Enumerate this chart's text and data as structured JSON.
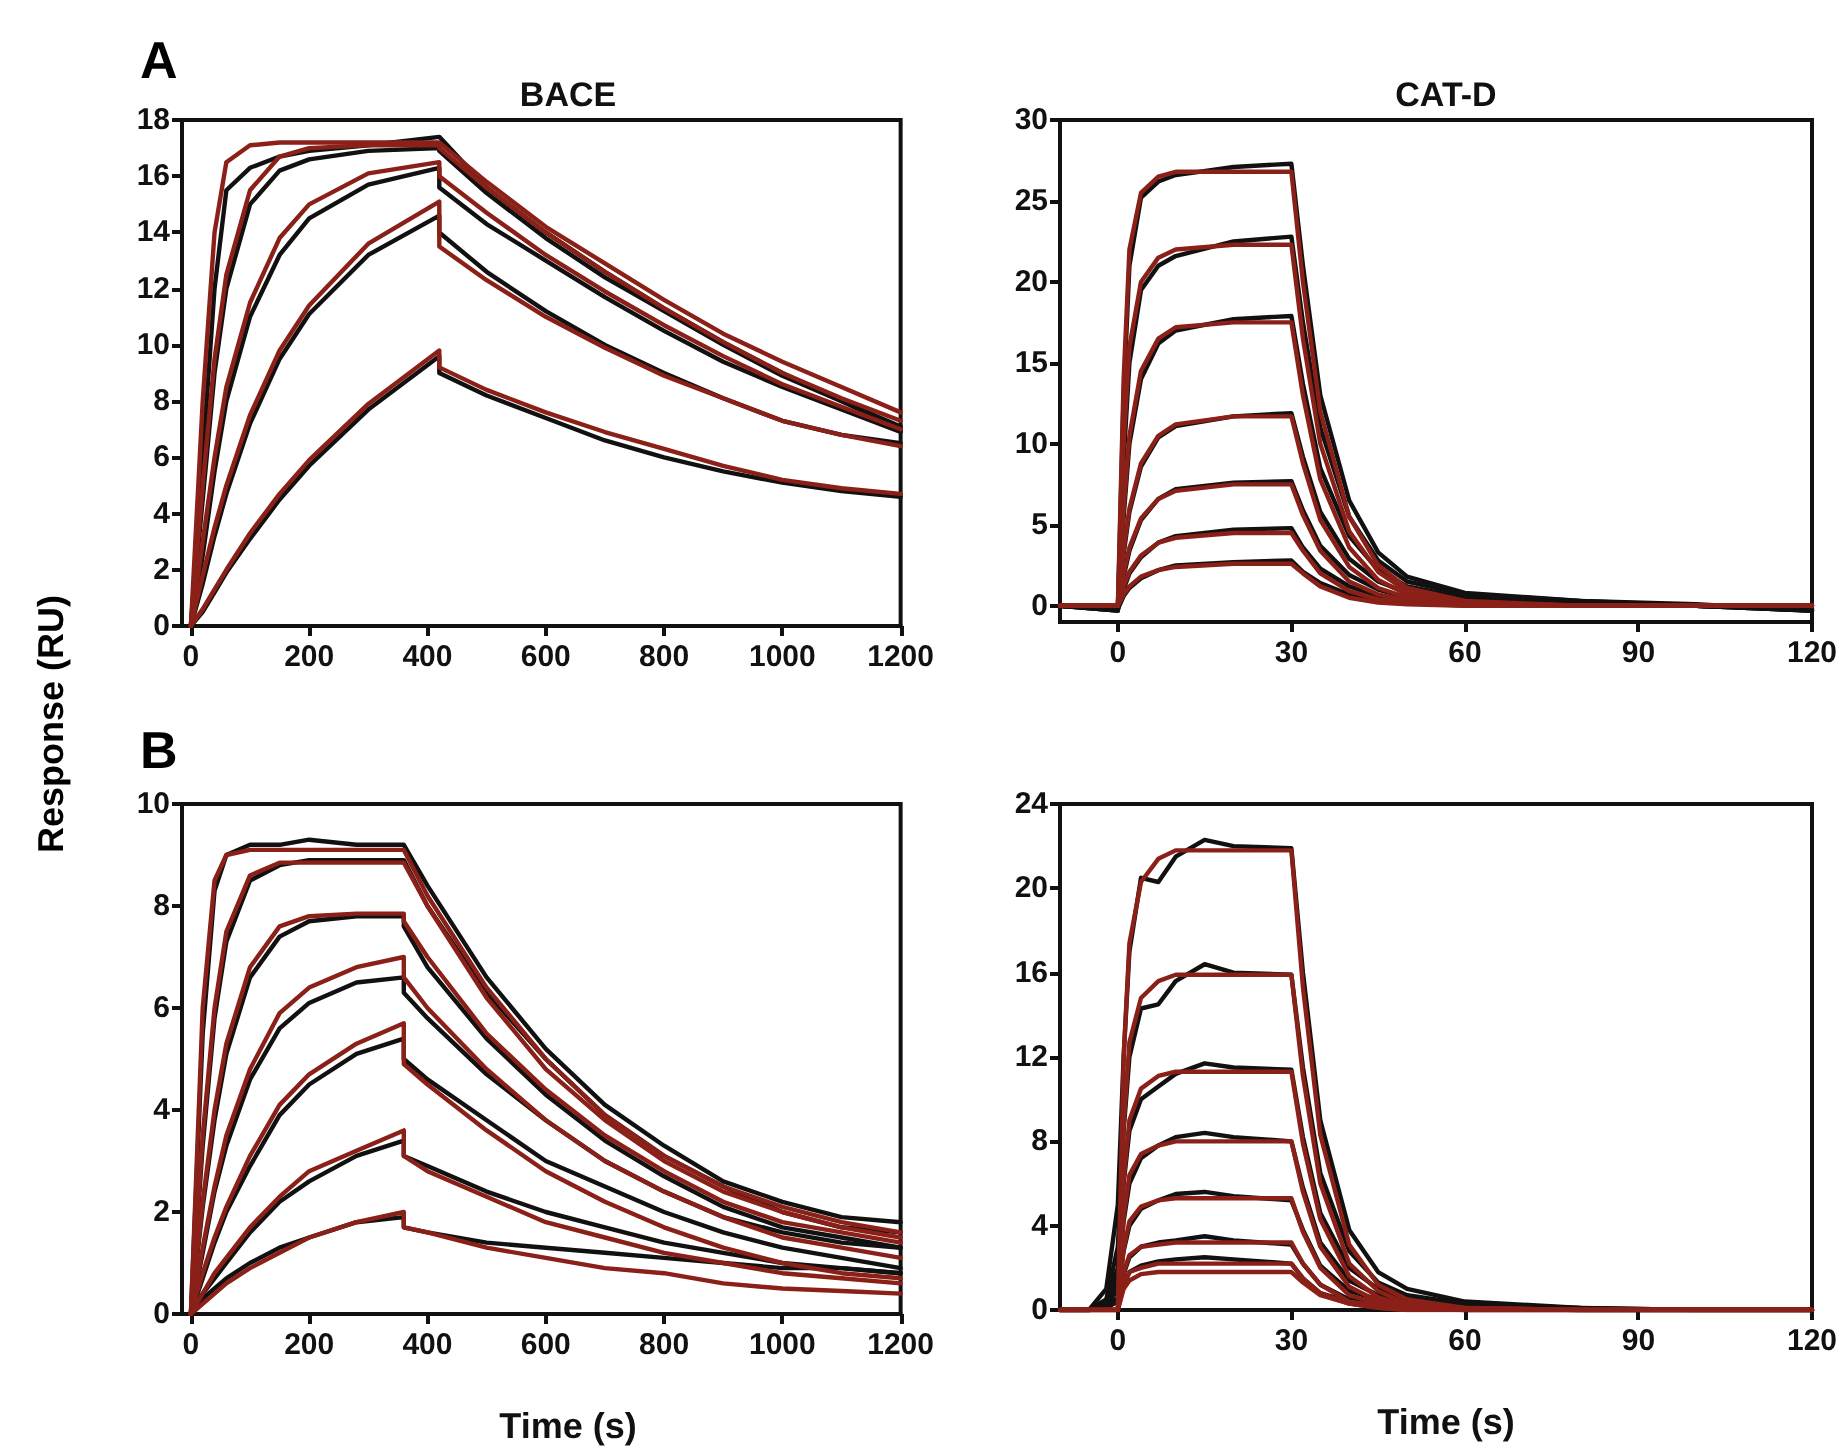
{
  "chart_data": [
    {
      "type": "line",
      "title": "BACE",
      "ylabel": "Response (RU)",
      "annotations": [
        "A"
      ],
      "xlim": [
        -15,
        1200
      ],
      "xticks": [
        0,
        200,
        400,
        600,
        800,
        1000,
        1200
      ],
      "ylim": [
        0,
        18
      ],
      "yticks": [
        0,
        2,
        4,
        6,
        8,
        10,
        12,
        14,
        16,
        18
      ],
      "grid": false,
      "marker": "none",
      "x": [
        0,
        20,
        40,
        60,
        100,
        150,
        200,
        300,
        420,
        420,
        500,
        600,
        700,
        800,
        900,
        1000,
        1100,
        1200
      ],
      "series": [
        {
          "color": "#111111",
          "values": [
            0,
            6,
            12,
            15.5,
            16.3,
            16.7,
            16.9,
            17.1,
            17.4,
            17.4,
            15.6,
            14.0,
            12.6,
            11.3,
            10.1,
            9.0,
            8.0,
            7.1
          ]
        },
        {
          "color": "#111111",
          "values": [
            0,
            4.5,
            9,
            12,
            15,
            16.2,
            16.6,
            16.9,
            17.0,
            16.9,
            15.4,
            13.8,
            12.4,
            11.2,
            10.0,
            8.9,
            8.0,
            7.0
          ]
        },
        {
          "color": "#111111",
          "values": [
            0,
            2.5,
            5.5,
            8,
            11,
            13.2,
            14.5,
            15.7,
            16.3,
            15.6,
            14.3,
            13.0,
            11.7,
            10.5,
            9.4,
            8.5,
            7.7,
            6.9
          ]
        },
        {
          "color": "#111111",
          "values": [
            0,
            1.5,
            3.2,
            4.7,
            7.2,
            9.5,
            11.1,
            13.2,
            14.6,
            14.0,
            12.6,
            11.2,
            10.0,
            9.0,
            8.1,
            7.3,
            6.8,
            6.5
          ]
        },
        {
          "color": "#111111",
          "values": [
            0,
            0.5,
            1.2,
            1.9,
            3.1,
            4.5,
            5.7,
            7.7,
            9.6,
            9.0,
            8.2,
            7.4,
            6.6,
            6.0,
            5.5,
            5.1,
            4.8,
            4.6
          ]
        },
        {
          "color": "#8b2018",
          "values": [
            0,
            8,
            14,
            16.5,
            17.1,
            17.2,
            17.2,
            17.2,
            17.2,
            17.2,
            15.8,
            14.2,
            12.9,
            11.6,
            10.4,
            9.4,
            8.5,
            7.6
          ]
        },
        {
          "color": "#8b2018",
          "values": [
            0,
            5,
            9.5,
            12.5,
            15.5,
            16.7,
            17.0,
            17.1,
            17.1,
            17.0,
            15.6,
            14.0,
            12.6,
            11.3,
            10.1,
            9.0,
            8.1,
            7.3
          ]
        },
        {
          "color": "#8b2018",
          "values": [
            0,
            3,
            6,
            8.5,
            11.5,
            13.8,
            15,
            16.1,
            16.5,
            16.0,
            14.7,
            13.2,
            11.9,
            10.7,
            9.6,
            8.6,
            7.8,
            7.0
          ]
        },
        {
          "color": "#8b2018",
          "values": [
            0,
            1.8,
            3.5,
            5,
            7.5,
            9.8,
            11.4,
            13.6,
            15.1,
            13.5,
            12.3,
            11.0,
            9.9,
            8.9,
            8.1,
            7.3,
            6.8,
            6.4
          ]
        },
        {
          "color": "#8b2018",
          "values": [
            0,
            0.6,
            1.3,
            2.0,
            3.3,
            4.7,
            5.9,
            7.9,
            9.8,
            9.2,
            8.4,
            7.6,
            6.9,
            6.3,
            5.7,
            5.2,
            4.9,
            4.7
          ]
        }
      ]
    },
    {
      "type": "line",
      "title": "CAT-D",
      "xlim": [
        -10,
        120
      ],
      "xticks": [
        0,
        30,
        60,
        90,
        120
      ],
      "ylim": [
        -1,
        30
      ],
      "yticks": [
        0,
        5,
        10,
        15,
        20,
        25,
        30
      ],
      "grid": false,
      "marker": "none",
      "x": [
        -10,
        0,
        1,
        2,
        4,
        7,
        10,
        20,
        30,
        32,
        35,
        40,
        45,
        50,
        60,
        80,
        100,
        120
      ],
      "series": [
        {
          "color": "#111111",
          "values": [
            0,
            -0.3,
            13,
            21,
            25.2,
            26.2,
            26.6,
            27.1,
            27.3,
            21,
            13,
            6.5,
            3.3,
            1.8,
            0.8,
            0.3,
            0.1,
            -0.3
          ]
        },
        {
          "color": "#111111",
          "values": [
            0,
            -0.3,
            9,
            15,
            19.5,
            21,
            21.6,
            22.5,
            22.8,
            17.5,
            11,
            5.5,
            2.8,
            1.5,
            0.7,
            0.3,
            0,
            -0.3
          ]
        },
        {
          "color": "#111111",
          "values": [
            0,
            -0.3,
            5.5,
            10,
            14,
            16.2,
            17,
            17.7,
            17.9,
            13.7,
            8.5,
            4.3,
            2.2,
            1.2,
            0.5,
            0.2,
            0,
            -0.3
          ]
        },
        {
          "color": "#111111",
          "values": [
            0,
            -0.2,
            3.2,
            5.8,
            8.6,
            10.4,
            11.1,
            11.7,
            11.9,
            9.2,
            5.8,
            2.9,
            1.5,
            0.8,
            0.4,
            0.2,
            0,
            -0.3
          ]
        },
        {
          "color": "#111111",
          "values": [
            0,
            -0.2,
            1.8,
            3.4,
            5.3,
            6.6,
            7.2,
            7.6,
            7.7,
            5.9,
            3.7,
            1.9,
            1,
            0.5,
            0.3,
            0.1,
            0,
            -0.2
          ]
        },
        {
          "color": "#111111",
          "values": [
            0,
            -0.2,
            1,
            2,
            3,
            3.9,
            4.3,
            4.7,
            4.8,
            3.6,
            2.3,
            1.2,
            0.6,
            0.3,
            0.2,
            0.1,
            0,
            -0.2
          ]
        },
        {
          "color": "#111111",
          "values": [
            0,
            -0.2,
            0.6,
            1.1,
            1.7,
            2.2,
            2.5,
            2.7,
            2.8,
            2.1,
            1.4,
            0.7,
            0.4,
            0.2,
            0.1,
            0,
            0,
            -0.2
          ]
        },
        {
          "color": "#8b2018",
          "values": [
            0,
            0,
            14,
            22,
            25.5,
            26.5,
            26.8,
            26.8,
            26.8,
            20,
            12,
            5.5,
            2.5,
            1.1,
            0.3,
            0,
            0,
            0
          ]
        },
        {
          "color": "#8b2018",
          "values": [
            0,
            0,
            10,
            16,
            20,
            21.5,
            22,
            22.3,
            22.3,
            16.5,
            10,
            4.6,
            2.1,
            0.9,
            0.2,
            0,
            0,
            0
          ]
        },
        {
          "color": "#8b2018",
          "values": [
            0,
            0,
            6,
            10.5,
            14.5,
            16.5,
            17.2,
            17.5,
            17.5,
            13,
            7.8,
            3.6,
            1.6,
            0.7,
            0.2,
            0,
            0,
            0
          ]
        },
        {
          "color": "#8b2018",
          "values": [
            0,
            0,
            3.5,
            6,
            8.8,
            10.5,
            11.2,
            11.7,
            11.7,
            8.8,
            5.3,
            2.4,
            1.1,
            0.5,
            0.1,
            0,
            0,
            0
          ]
        },
        {
          "color": "#8b2018",
          "values": [
            0,
            0,
            2,
            3.6,
            5.4,
            6.6,
            7.1,
            7.5,
            7.5,
            5.6,
            3.4,
            1.5,
            0.7,
            0.3,
            0.1,
            0,
            0,
            0
          ]
        },
        {
          "color": "#8b2018",
          "values": [
            0,
            0,
            1.2,
            2.1,
            3.1,
            3.9,
            4.2,
            4.5,
            4.5,
            3.4,
            2,
            0.9,
            0.4,
            0.2,
            0,
            0,
            0,
            0
          ]
        },
        {
          "color": "#8b2018",
          "values": [
            0,
            0,
            0.7,
            1.2,
            1.8,
            2.2,
            2.4,
            2.6,
            2.6,
            2,
            1.2,
            0.5,
            0.2,
            0.1,
            0,
            0,
            0,
            0
          ]
        }
      ]
    },
    {
      "type": "line",
      "xlabel": "Time (s)",
      "annotations": [
        "B"
      ],
      "xlim": [
        -15,
        1200
      ],
      "xticks": [
        0,
        200,
        400,
        600,
        800,
        1000,
        1200
      ],
      "ylim": [
        0,
        10
      ],
      "yticks": [
        0,
        2,
        4,
        6,
        8,
        10
      ],
      "grid": false,
      "marker": "none",
      "x": [
        0,
        20,
        40,
        60,
        100,
        150,
        200,
        280,
        360,
        360,
        400,
        500,
        600,
        700,
        800,
        900,
        1000,
        1100,
        1200
      ],
      "series": [
        {
          "color": "#111111",
          "values": [
            0,
            5.5,
            8.3,
            9.0,
            9.2,
            9.2,
            9.3,
            9.2,
            9.2,
            9.2,
            8.4,
            6.6,
            5.2,
            4.1,
            3.3,
            2.6,
            2.2,
            1.9,
            1.8
          ]
        },
        {
          "color": "#111111",
          "values": [
            0,
            3.3,
            5.8,
            7.3,
            8.5,
            8.8,
            8.9,
            8.9,
            8.9,
            8.9,
            8.0,
            6.3,
            5.0,
            3.9,
            3.1,
            2.5,
            2.0,
            1.7,
            1.6
          ]
        },
        {
          "color": "#111111",
          "values": [
            0,
            2.1,
            3.8,
            5.1,
            6.6,
            7.4,
            7.7,
            7.8,
            7.8,
            7.6,
            6.8,
            5.4,
            4.3,
            3.4,
            2.7,
            2.1,
            1.7,
            1.5,
            1.3
          ]
        },
        {
          "color": "#111111",
          "values": [
            0,
            1.2,
            2.4,
            3.3,
            4.6,
            5.6,
            6.1,
            6.5,
            6.6,
            6.3,
            5.8,
            4.7,
            3.8,
            3.0,
            2.4,
            1.9,
            1.6,
            1.4,
            1.3
          ]
        },
        {
          "color": "#111111",
          "values": [
            0,
            0.7,
            1.4,
            2.0,
            2.9,
            3.9,
            4.5,
            5.1,
            5.4,
            5.0,
            4.6,
            3.8,
            3.0,
            2.5,
            2.0,
            1.6,
            1.3,
            1.1,
            0.9
          ]
        },
        {
          "color": "#111111",
          "values": [
            0,
            0.4,
            0.7,
            1.0,
            1.6,
            2.2,
            2.6,
            3.1,
            3.4,
            3.1,
            2.9,
            2.4,
            2.0,
            1.7,
            1.4,
            1.2,
            1.0,
            0.9,
            0.8
          ]
        },
        {
          "color": "#111111",
          "values": [
            0,
            0.3,
            0.5,
            0.7,
            1.0,
            1.3,
            1.5,
            1.8,
            1.9,
            1.7,
            1.6,
            1.4,
            1.3,
            1.2,
            1.1,
            1.0,
            0.9,
            0.9,
            0.8
          ]
        },
        {
          "color": "#8b2018",
          "values": [
            0,
            6,
            8.5,
            9.0,
            9.1,
            9.1,
            9.1,
            9.1,
            9.1,
            9.1,
            8.2,
            6.4,
            5.0,
            3.9,
            3.1,
            2.5,
            2.1,
            1.8,
            1.6
          ]
        },
        {
          "color": "#8b2018",
          "values": [
            0,
            3.5,
            6,
            7.5,
            8.6,
            8.85,
            8.85,
            8.85,
            8.85,
            8.85,
            8.0,
            6.2,
            4.8,
            3.8,
            3.0,
            2.4,
            2.0,
            1.7,
            1.5
          ]
        },
        {
          "color": "#8b2018",
          "values": [
            0,
            2.2,
            4,
            5.3,
            6.8,
            7.6,
            7.8,
            7.85,
            7.85,
            7.7,
            7.0,
            5.5,
            4.4,
            3.5,
            2.8,
            2.2,
            1.8,
            1.6,
            1.4
          ]
        },
        {
          "color": "#8b2018",
          "values": [
            0,
            1.3,
            2.5,
            3.5,
            4.8,
            5.9,
            6.4,
            6.8,
            7.0,
            6.6,
            6.0,
            4.8,
            3.8,
            3.0,
            2.4,
            1.9,
            1.5,
            1.3,
            1.1
          ]
        },
        {
          "color": "#8b2018",
          "values": [
            0,
            0.8,
            1.5,
            2.1,
            3.1,
            4.1,
            4.7,
            5.3,
            5.7,
            4.9,
            4.5,
            3.6,
            2.8,
            2.2,
            1.7,
            1.3,
            1.0,
            0.8,
            0.7
          ]
        },
        {
          "color": "#8b2018",
          "values": [
            0,
            0.4,
            0.8,
            1.1,
            1.7,
            2.3,
            2.8,
            3.2,
            3.6,
            3.1,
            2.8,
            2.3,
            1.8,
            1.5,
            1.2,
            1.0,
            0.8,
            0.7,
            0.6
          ]
        },
        {
          "color": "#8b2018",
          "values": [
            0,
            0.2,
            0.4,
            0.6,
            0.9,
            1.2,
            1.5,
            1.8,
            2.0,
            1.7,
            1.6,
            1.3,
            1.1,
            0.9,
            0.8,
            0.6,
            0.5,
            0.45,
            0.4
          ]
        }
      ]
    },
    {
      "type": "line",
      "xlabel": "Time (s)",
      "xlim": [
        -10,
        120
      ],
      "xticks": [
        0,
        30,
        60,
        90,
        120
      ],
      "ylim": [
        0,
        24
      ],
      "yticks": [
        0,
        4,
        8,
        12,
        16,
        20,
        24
      ],
      "grid": false,
      "marker": "none",
      "x": [
        -10,
        -5,
        -2,
        0,
        1,
        2,
        4,
        7,
        10,
        15,
        20,
        30,
        32,
        35,
        40,
        45,
        50,
        60,
        80,
        100,
        120
      ],
      "series": [
        {
          "color": "#111111",
          "values": [
            0,
            0,
            1,
            5,
            12,
            17,
            20.5,
            20.3,
            21.5,
            22.3,
            22,
            21.9,
            16,
            9,
            3.8,
            1.8,
            1,
            0.4,
            0.1,
            0,
            0
          ]
        },
        {
          "color": "#111111",
          "values": [
            0,
            0,
            0.5,
            3,
            8.5,
            12,
            14.3,
            14.5,
            15.6,
            16.4,
            16,
            15.9,
            11.5,
            6.5,
            2.8,
            1.3,
            0.7,
            0.3,
            0.1,
            0,
            0
          ]
        },
        {
          "color": "#111111",
          "values": [
            0,
            0,
            0.3,
            2,
            6,
            8.5,
            10,
            10.6,
            11.2,
            11.7,
            11.5,
            11.4,
            8.2,
            4.6,
            2,
            1,
            0.5,
            0.2,
            0,
            0,
            0
          ]
        },
        {
          "color": "#111111",
          "values": [
            0,
            0,
            0.2,
            1.5,
            4.2,
            6,
            7.2,
            7.8,
            8.2,
            8.4,
            8.2,
            8,
            5.8,
            3.2,
            1.4,
            0.7,
            0.4,
            0.1,
            0,
            0,
            0
          ]
        },
        {
          "color": "#111111",
          "values": [
            0,
            0,
            0.2,
            1,
            2.8,
            4,
            4.8,
            5.2,
            5.5,
            5.6,
            5.4,
            5.2,
            3.8,
            2.1,
            0.9,
            0.5,
            0.3,
            0.1,
            0,
            0,
            0
          ]
        },
        {
          "color": "#111111",
          "values": [
            0,
            0,
            0.1,
            0.6,
            1.7,
            2.5,
            3,
            3.2,
            3.3,
            3.5,
            3.3,
            3.1,
            2.2,
            1.2,
            0.5,
            0.3,
            0.2,
            0,
            0,
            0,
            0
          ]
        },
        {
          "color": "#111111",
          "values": [
            0,
            0,
            0.1,
            0.4,
            1.2,
            1.8,
            2.1,
            2.3,
            2.4,
            2.5,
            2.4,
            2.2,
            1.5,
            0.8,
            0.4,
            0.2,
            0.1,
            0,
            0,
            0,
            0
          ]
        },
        {
          "color": "#8b2018",
          "values": [
            0,
            0,
            0,
            0,
            12,
            17.4,
            20.3,
            21.4,
            21.8,
            21.8,
            21.8,
            21.8,
            15.3,
            8.3,
            3.1,
            1.2,
            0.5,
            0.1,
            0,
            0,
            0
          ]
        },
        {
          "color": "#8b2018",
          "values": [
            0,
            0,
            0,
            0,
            8.7,
            12.7,
            14.8,
            15.6,
            15.9,
            15.9,
            15.9,
            15.9,
            11.1,
            6,
            2.2,
            0.9,
            0.3,
            0.1,
            0,
            0,
            0
          ]
        },
        {
          "color": "#8b2018",
          "values": [
            0,
            0,
            0,
            0,
            6.2,
            9,
            10.5,
            11.1,
            11.3,
            11.3,
            11.3,
            11.3,
            7.9,
            4.3,
            1.6,
            0.6,
            0.2,
            0.1,
            0,
            0,
            0
          ]
        },
        {
          "color": "#8b2018",
          "values": [
            0,
            0,
            0,
            0,
            4.4,
            6.4,
            7.4,
            7.8,
            8,
            8,
            8,
            8,
            5.6,
            3,
            1.1,
            0.4,
            0.2,
            0,
            0,
            0,
            0
          ]
        },
        {
          "color": "#8b2018",
          "values": [
            0,
            0,
            0,
            0,
            2.9,
            4.2,
            4.9,
            5.2,
            5.3,
            5.3,
            5.3,
            5.3,
            3.7,
            2,
            0.7,
            0.3,
            0.1,
            0,
            0,
            0,
            0
          ]
        },
        {
          "color": "#8b2018",
          "values": [
            0,
            0,
            0,
            0,
            1.8,
            2.6,
            3,
            3.1,
            3.2,
            3.2,
            3.2,
            3.2,
            2.2,
            1.2,
            0.4,
            0.2,
            0.1,
            0,
            0,
            0,
            0
          ]
        },
        {
          "color": "#8b2018",
          "values": [
            0,
            0,
            0,
            0,
            1.2,
            1.8,
            2,
            2.2,
            2.2,
            2.2,
            2.2,
            2.2,
            1.5,
            0.8,
            0.3,
            0.1,
            0,
            0,
            0,
            0,
            0
          ]
        },
        {
          "color": "#8b2018",
          "values": [
            0,
            0,
            0,
            0,
            1,
            1.4,
            1.7,
            1.8,
            1.8,
            1.8,
            1.8,
            1.8,
            1.3,
            0.7,
            0.3,
            0.1,
            0,
            0,
            0,
            0,
            0
          ]
        }
      ]
    }
  ]
}
